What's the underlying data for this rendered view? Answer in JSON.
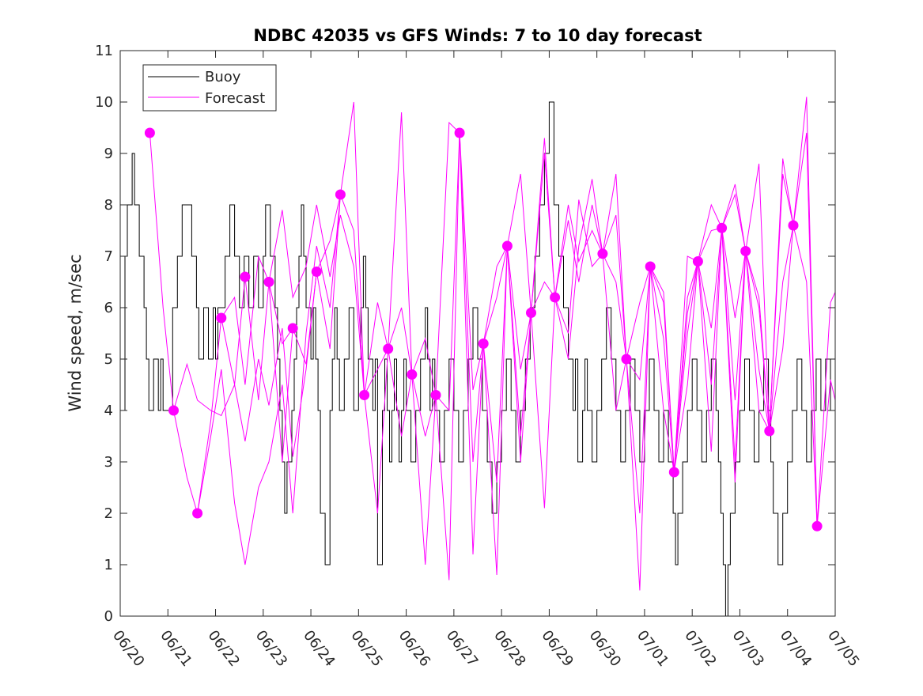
{
  "chart_data": {
    "type": "line",
    "title": "NDBC 42035 vs GFS Winds: 7 to 10 day forecast",
    "xlabel": "",
    "ylabel": "Wind speed, m/sec",
    "xlim": [
      "06/20",
      "07/05"
    ],
    "ylim": [
      0,
      11
    ],
    "x_tick_labels": [
      "06/20",
      "06/21",
      "06/22",
      "06/23",
      "06/24",
      "06/25",
      "06/26",
      "06/27",
      "06/28",
      "06/29",
      "06/30",
      "07/01",
      "07/02",
      "07/03",
      "07/04",
      "07/05"
    ],
    "y_ticks": [
      0,
      1,
      2,
      3,
      4,
      5,
      6,
      7,
      8,
      9,
      10,
      11
    ],
    "grid": false,
    "legend_position": "top-left",
    "colors": {
      "buoy": "#000000",
      "forecast": "#ff00ff"
    },
    "buoy": {
      "name": "Buoy",
      "x_day": [
        0,
        0.1,
        0.15,
        0.25,
        0.3,
        0.4,
        0.5,
        0.55,
        0.6,
        0.7,
        0.8,
        0.85,
        0.9,
        1.0,
        1.1,
        1.2,
        1.3,
        1.5,
        1.6,
        1.65,
        1.75,
        1.85,
        1.95,
        2.0,
        2.05,
        2.1,
        2.2,
        2.3,
        2.4,
        2.5,
        2.6,
        2.7,
        2.8,
        2.9,
        3.0,
        3.05,
        3.15,
        3.25,
        3.3,
        3.35,
        3.4,
        3.45,
        3.5,
        3.6,
        3.65,
        3.7,
        3.75,
        3.8,
        3.85,
        3.9,
        4.0,
        4.05,
        4.1,
        4.15,
        4.2,
        4.3,
        4.4,
        4.45,
        4.5,
        4.55,
        4.6,
        4.7,
        4.8,
        4.9,
        5.0,
        5.05,
        5.1,
        5.15,
        5.2,
        5.3,
        5.35,
        5.4,
        5.5,
        5.55,
        5.6,
        5.65,
        5.7,
        5.75,
        5.8,
        5.85,
        5.9,
        5.95,
        6.0,
        6.1,
        6.2,
        6.3,
        6.4,
        6.45,
        6.5,
        6.55,
        6.6,
        6.7,
        6.8,
        6.9,
        7.0,
        7.1,
        7.2,
        7.3,
        7.4,
        7.5,
        7.6,
        7.7,
        7.8,
        7.9,
        8.0,
        8.1,
        8.2,
        8.3,
        8.4,
        8.5,
        8.6,
        8.7,
        8.8,
        8.9,
        9.0,
        9.1,
        9.2,
        9.3,
        9.4,
        9.5,
        9.55,
        9.6,
        9.7,
        9.75,
        9.8,
        9.9,
        10.0,
        10.1,
        10.2,
        10.3,
        10.4,
        10.5,
        10.6,
        10.7,
        10.8,
        10.9,
        11.0,
        11.1,
        11.2,
        11.3,
        11.4,
        11.5,
        11.6,
        11.65,
        11.7,
        11.8,
        11.9,
        12.0,
        12.1,
        12.2,
        12.3,
        12.4,
        12.5,
        12.55,
        12.6,
        12.65,
        12.7,
        12.75,
        12.8,
        12.9,
        13.0,
        13.1,
        13.2,
        13.3,
        13.4,
        13.5,
        13.6,
        13.65,
        13.7,
        13.8,
        13.9,
        14.0,
        14.1,
        14.2,
        14.3,
        14.4,
        14.5,
        14.6,
        14.7,
        14.8,
        14.9,
        15.0
      ],
      "values": [
        4,
        7,
        8,
        9,
        8,
        7,
        6,
        5,
        4,
        5,
        4,
        5,
        4,
        4,
        6,
        7,
        8,
        7,
        6,
        5,
        6,
        5,
        6,
        5,
        6,
        6,
        7,
        8,
        7,
        6,
        7,
        6,
        7,
        6,
        7,
        8,
        7,
        6,
        5,
        4,
        3,
        2,
        3,
        4,
        5,
        6,
        7,
        8,
        7,
        6,
        5,
        6,
        5,
        4,
        2,
        1,
        4,
        5,
        6,
        5,
        4,
        5,
        6,
        4,
        5,
        6,
        7,
        6,
        5,
        4,
        5,
        1,
        4,
        5,
        4,
        3,
        4,
        5,
        4,
        3,
        4,
        5,
        4,
        3,
        4,
        5,
        6,
        5,
        4,
        5,
        4,
        3,
        4,
        5,
        4,
        3,
        4,
        5,
        6,
        5,
        4,
        3,
        2,
        3,
        4,
        5,
        4,
        3,
        4,
        5,
        6,
        7,
        8,
        9,
        10,
        8,
        7,
        6,
        5,
        4,
        5,
        3,
        4,
        5,
        4,
        3,
        4,
        5,
        6,
        5,
        4,
        3,
        4,
        5,
        4,
        3,
        4,
        5,
        4,
        3,
        4,
        3,
        2,
        1,
        2,
        3,
        4,
        5,
        4,
        3,
        4,
        5,
        4,
        3,
        2,
        1,
        0,
        1,
        2,
        3,
        4,
        5,
        4,
        3,
        4,
        5,
        4,
        3,
        2,
        1,
        2,
        3,
        4,
        5,
        4,
        3,
        4,
        5,
        4,
        5,
        4,
        5
      ]
    },
    "forecast": {
      "name": "Forecast",
      "markers": [
        {
          "x": 0.62,
          "y": 9.4
        },
        {
          "x": 1.12,
          "y": 4.0
        },
        {
          "x": 1.62,
          "y": 2.0
        },
        {
          "x": 2.12,
          "y": 5.8
        },
        {
          "x": 2.62,
          "y": 6.6
        },
        {
          "x": 3.12,
          "y": 6.5
        },
        {
          "x": 3.62,
          "y": 5.6
        },
        {
          "x": 4.12,
          "y": 6.7
        },
        {
          "x": 4.62,
          "y": 8.2
        },
        {
          "x": 5.12,
          "y": 4.3
        },
        {
          "x": 5.62,
          "y": 5.2
        },
        {
          "x": 6.12,
          "y": 4.7
        },
        {
          "x": 6.62,
          "y": 4.3
        },
        {
          "x": 7.12,
          "y": 9.4
        },
        {
          "x": 7.62,
          "y": 5.3
        },
        {
          "x": 8.12,
          "y": 7.2
        },
        {
          "x": 8.62,
          "y": 5.9
        },
        {
          "x": 9.12,
          "y": 6.2
        },
        {
          "x": 10.12,
          "y": 7.05
        },
        {
          "x": 10.62,
          "y": 5.0
        },
        {
          "x": 11.12,
          "y": 6.8
        },
        {
          "x": 11.62,
          "y": 2.8
        },
        {
          "x": 12.12,
          "y": 6.9
        },
        {
          "x": 12.62,
          "y": 7.55
        },
        {
          "x": 13.12,
          "y": 7.1
        },
        {
          "x": 13.62,
          "y": 3.6
        },
        {
          "x": 14.12,
          "y": 7.6
        },
        {
          "x": 14.62,
          "y": 1.75
        }
      ],
      "runs": [
        {
          "x": [
            0.62,
            0.9,
            1.12,
            1.4,
            1.62,
            1.9,
            2.12,
            2.4,
            2.62,
            2.9,
            3.12,
            3.4,
            3.62
          ],
          "values": [
            9.4,
            6.0,
            4.0,
            2.7,
            2.0,
            3.8,
            5.8,
            4.5,
            6.6,
            4.2,
            6.5,
            3.0,
            5.6
          ]
        },
        {
          "x": [
            1.12,
            1.4,
            1.62,
            1.9,
            2.12,
            2.4,
            2.62,
            2.9,
            3.12,
            3.4,
            3.62,
            3.9,
            4.12
          ],
          "values": [
            4.0,
            4.9,
            4.2,
            4.0,
            3.9,
            4.5,
            3.4,
            5.0,
            4.1,
            5.6,
            3.1,
            4.8,
            6.7
          ]
        },
        {
          "x": [
            1.62,
            1.9,
            2.12,
            2.4,
            2.62,
            2.9,
            3.12,
            3.4,
            3.62,
            3.9,
            4.12,
            4.4,
            4.62
          ],
          "values": [
            2.0,
            3.5,
            4.8,
            2.2,
            1.0,
            2.5,
            3.0,
            4.5,
            2.0,
            5.5,
            7.2,
            6.0,
            8.2
          ]
        },
        {
          "x": [
            2.12,
            2.4,
            2.62,
            2.9,
            3.12,
            3.4,
            3.62,
            3.9,
            4.12,
            4.4,
            4.62,
            4.9,
            5.12
          ],
          "values": [
            5.8,
            6.2,
            4.5,
            7.0,
            6.5,
            7.9,
            6.2,
            6.8,
            8.0,
            6.6,
            7.8,
            6.8,
            4.3
          ]
        },
        {
          "x": [
            3.12,
            3.4,
            3.62,
            3.9,
            4.12,
            4.4,
            4.62,
            4.9,
            5.12,
            5.4,
            5.62,
            5.9,
            6.12
          ],
          "values": [
            6.5,
            5.3,
            5.6,
            4.9,
            6.7,
            5.2,
            8.2,
            10.0,
            4.3,
            6.1,
            5.2,
            9.8,
            4.7
          ]
        },
        {
          "x": [
            4.12,
            4.4,
            4.62,
            4.9,
            5.12,
            5.4,
            5.62,
            5.9,
            6.12,
            6.4,
            6.62,
            6.9,
            7.12
          ],
          "values": [
            6.7,
            7.3,
            8.2,
            7.5,
            4.3,
            2.0,
            5.2,
            6.0,
            4.7,
            1.0,
            4.3,
            9.6,
            9.4
          ]
        },
        {
          "x": [
            5.12,
            5.4,
            5.62,
            5.9,
            6.12,
            6.4,
            6.62,
            6.9,
            7.12,
            7.4,
            7.62,
            7.9,
            8.12
          ],
          "values": [
            4.3,
            4.8,
            5.2,
            3.5,
            4.7,
            5.4,
            4.3,
            0.7,
            9.4,
            3.0,
            5.3,
            6.2,
            7.2
          ]
        },
        {
          "x": [
            6.12,
            6.4,
            6.62,
            6.9,
            7.12,
            7.4,
            7.62,
            7.9,
            8.12,
            8.4,
            8.62,
            8.9,
            9.12
          ],
          "values": [
            4.7,
            3.5,
            4.3,
            4.0,
            9.4,
            1.2,
            5.3,
            2.6,
            7.2,
            4.8,
            5.9,
            9.0,
            6.2
          ]
        },
        {
          "x": [
            7.12,
            7.4,
            7.62,
            7.9,
            8.12,
            8.4,
            8.62,
            8.9,
            9.12,
            9.4,
            9.62,
            9.9,
            10.12
          ],
          "values": [
            9.4,
            4.4,
            5.3,
            0.8,
            7.2,
            8.6,
            5.9,
            2.1,
            6.2,
            7.7,
            6.5,
            8.0,
            7.05
          ]
        },
        {
          "x": [
            7.62,
            7.9,
            8.12,
            8.4,
            8.62,
            8.9,
            9.12,
            9.4,
            9.62,
            9.9,
            10.12,
            10.4,
            10.62
          ],
          "values": [
            5.3,
            6.8,
            7.2,
            3.0,
            5.9,
            9.3,
            6.2,
            8.0,
            6.9,
            7.5,
            7.05,
            8.6,
            5.0
          ]
        },
        {
          "x": [
            8.12,
            8.4,
            8.62,
            8.9,
            9.12,
            9.4,
            9.62,
            9.9,
            10.12,
            10.4,
            10.62,
            10.9,
            11.12
          ],
          "values": [
            7.2,
            3.5,
            5.9,
            6.5,
            6.2,
            5.0,
            7.2,
            8.5,
            7.05,
            4.0,
            5.0,
            6.1,
            6.8
          ]
        },
        {
          "x": [
            9.12,
            9.4,
            9.62,
            9.9,
            10.12,
            10.4,
            10.62,
            10.9,
            11.12,
            11.4,
            11.62,
            11.9,
            12.12
          ],
          "values": [
            6.2,
            5.5,
            8.1,
            6.8,
            7.05,
            7.8,
            5.0,
            4.6,
            6.8,
            5.4,
            2.8,
            5.9,
            6.9
          ]
        },
        {
          "x": [
            10.12,
            10.4,
            10.62,
            10.9,
            11.12,
            11.4,
            11.62,
            11.9,
            12.12,
            12.4,
            12.62,
            12.9,
            13.12
          ],
          "values": [
            7.05,
            6.5,
            5.0,
            2.0,
            6.8,
            4.0,
            2.8,
            6.2,
            6.9,
            8.0,
            7.55,
            4.2,
            7.1
          ]
        },
        {
          "x": [
            10.62,
            10.9,
            11.12,
            11.4,
            11.62,
            11.9,
            12.12,
            12.4,
            12.62,
            12.9,
            13.12,
            13.4,
            13.62
          ],
          "values": [
            5.0,
            0.5,
            6.8,
            6.3,
            2.8,
            7.0,
            6.9,
            4.5,
            7.55,
            8.2,
            7.1,
            8.8,
            3.6
          ]
        },
        {
          "x": [
            11.12,
            11.4,
            11.62,
            11.9,
            12.12,
            12.4,
            12.62,
            12.9,
            13.12,
            13.4,
            13.62,
            13.9,
            14.12
          ],
          "values": [
            6.8,
            6.1,
            2.8,
            5.5,
            6.9,
            7.5,
            7.55,
            2.6,
            7.1,
            6.0,
            3.6,
            8.6,
            7.6
          ]
        },
        {
          "x": [
            11.62,
            11.9,
            12.12,
            12.4,
            12.62,
            12.9,
            13.12,
            13.4,
            13.62,
            13.9,
            14.12,
            14.4,
            14.62
          ],
          "values": [
            2.8,
            4.5,
            6.9,
            3.2,
            7.55,
            8.4,
            7.1,
            4.0,
            3.6,
            8.9,
            7.6,
            10.1,
            1.75
          ]
        },
        {
          "x": [
            12.12,
            12.4,
            12.62,
            12.9,
            13.12,
            13.4,
            13.62,
            13.9,
            14.12,
            14.4,
            14.62,
            14.9,
            15.0
          ],
          "values": [
            6.9,
            5.6,
            7.55,
            5.8,
            7.1,
            6.2,
            3.6,
            6.5,
            7.6,
            9.4,
            1.75,
            6.1,
            6.3
          ]
        },
        {
          "x": [
            12.62,
            12.9,
            13.12,
            13.4,
            13.62,
            13.9,
            14.12,
            14.4,
            14.62,
            14.9,
            15.0
          ],
          "values": [
            7.55,
            3.0,
            7.1,
            4.8,
            3.6,
            5.2,
            7.6,
            6.5,
            1.75,
            4.6,
            4.2
          ]
        }
      ]
    }
  }
}
